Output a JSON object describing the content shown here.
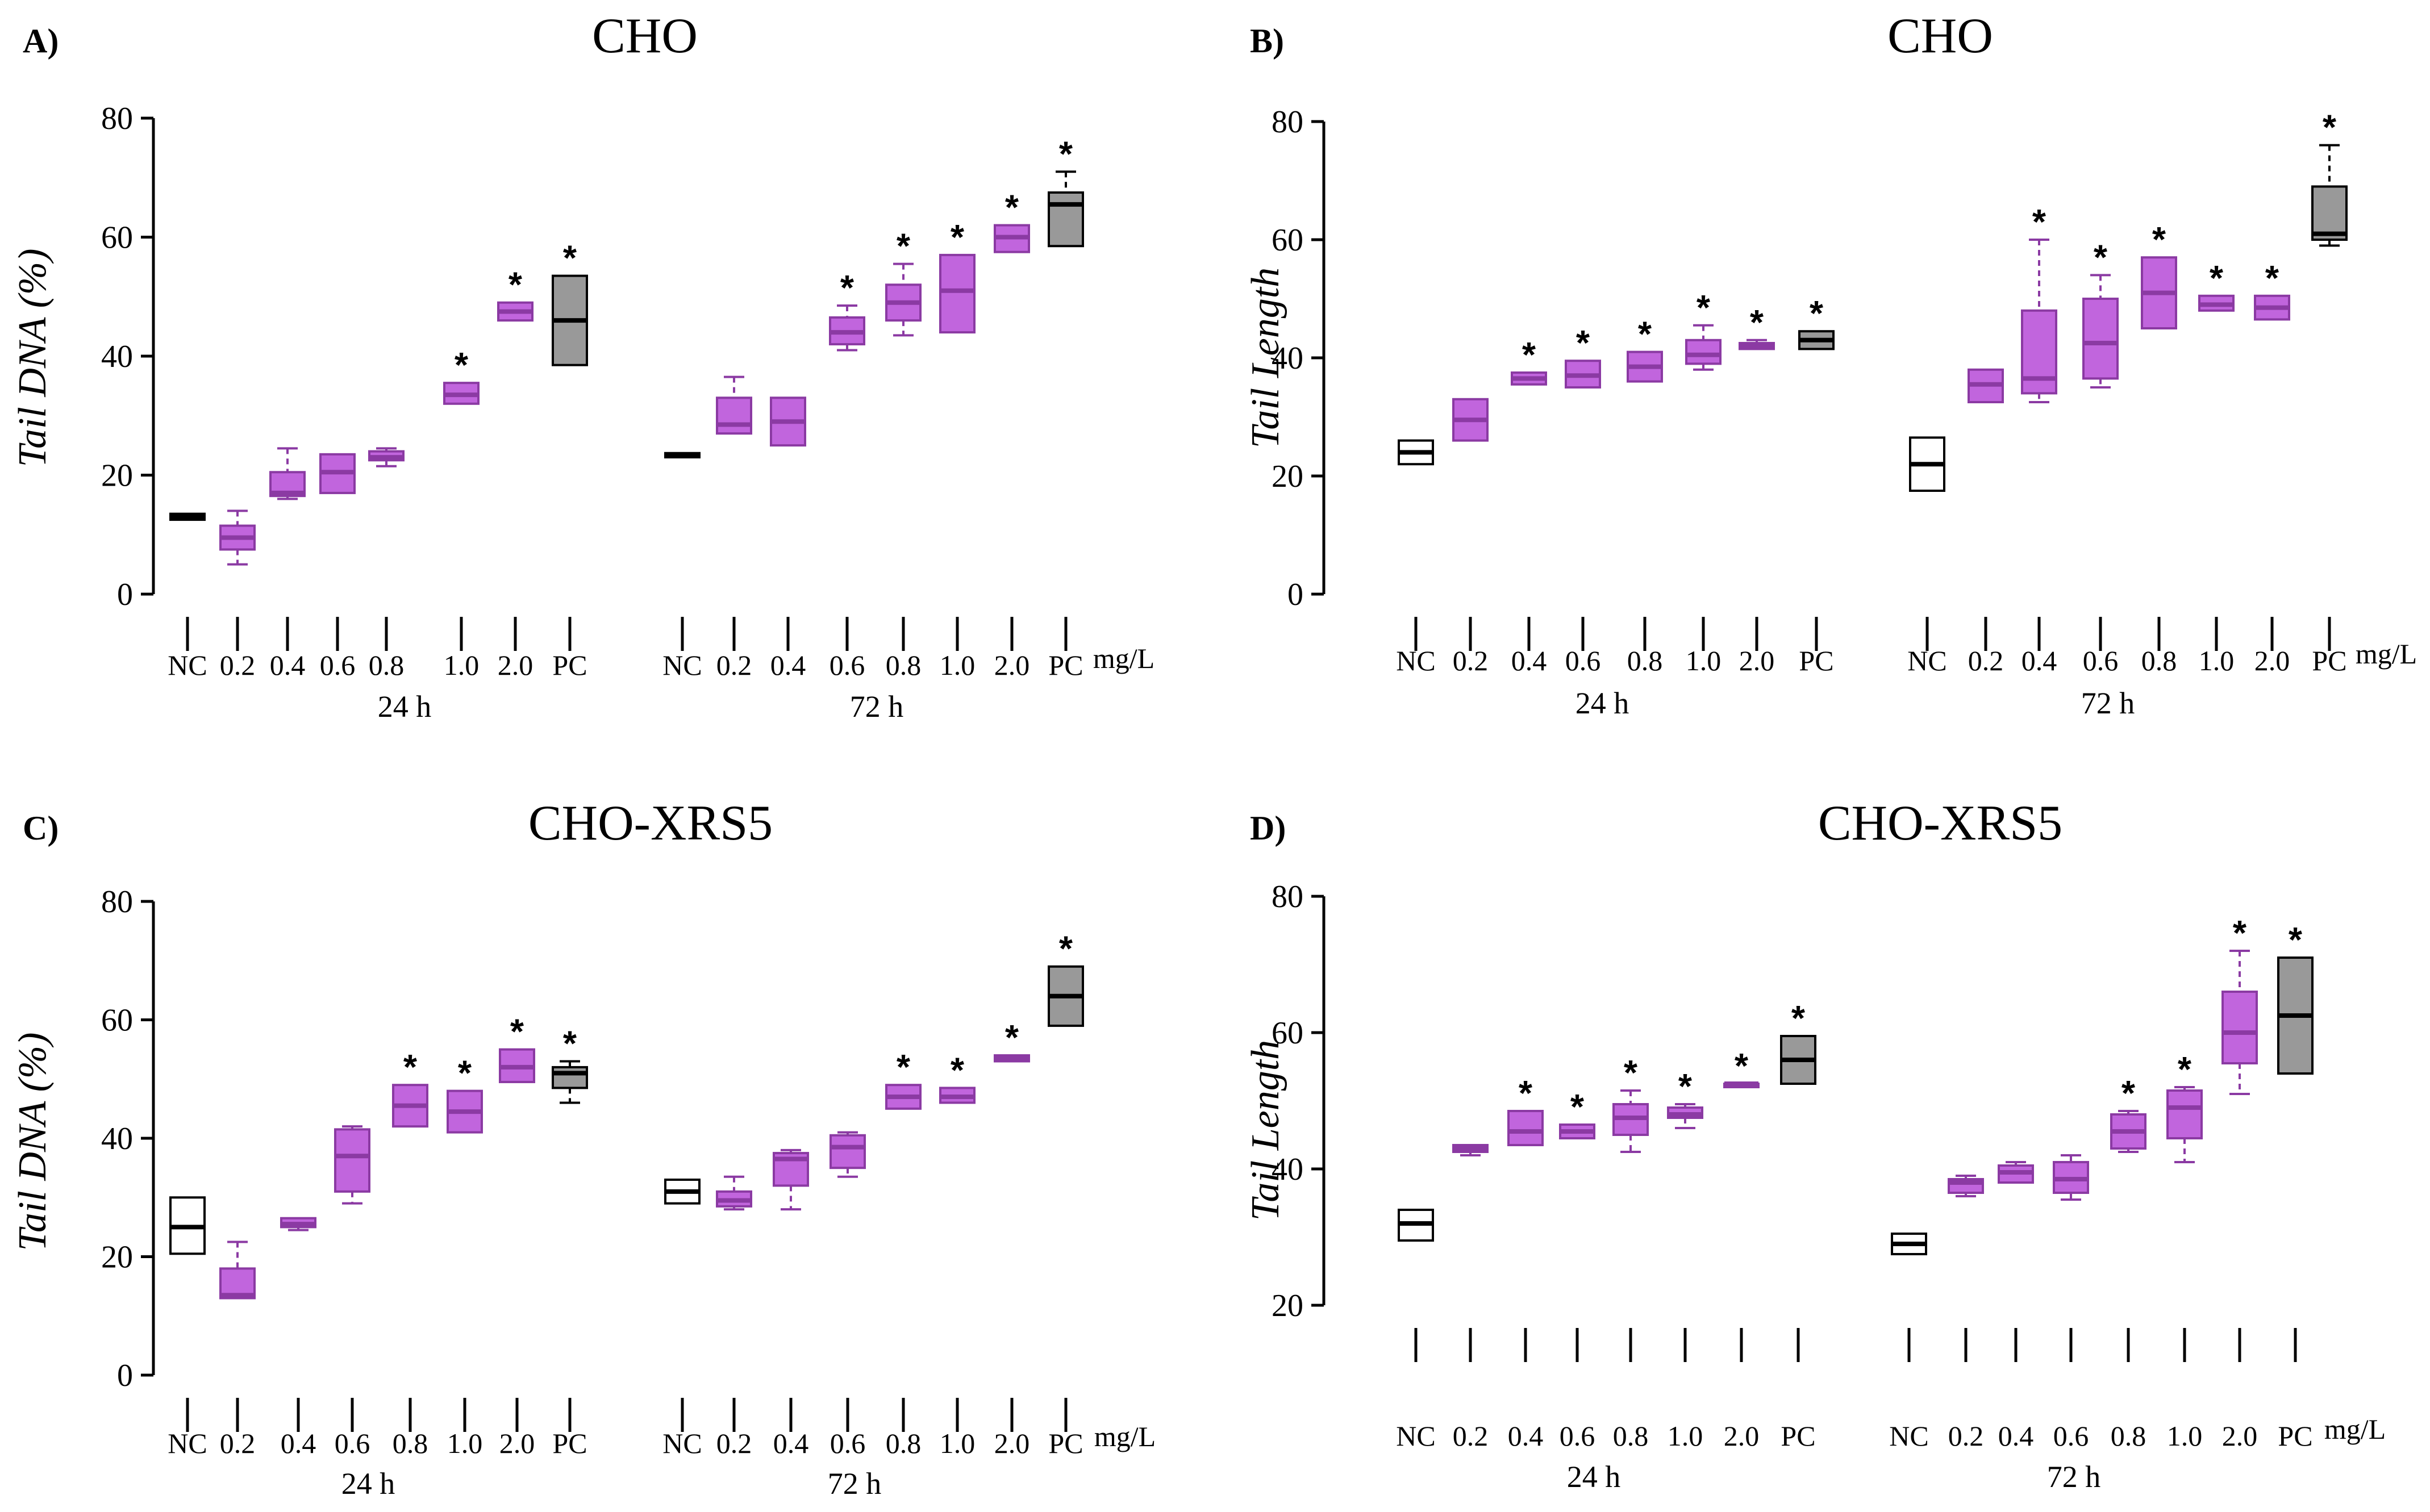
{
  "figure": {
    "categories": [
      "NC",
      "0.2",
      "0.4",
      "0.6",
      "0.8",
      "1.0",
      "2.0",
      "PC"
    ],
    "unit_label": "mg/L",
    "group_labels": [
      "24 h",
      "72 h"
    ],
    "colors": {
      "nc_fill": "#ffffff",
      "treatment_fill": "#c165dd",
      "treatment_dark": "#8b3aa3",
      "pc_fill": "#999999",
      "line": "#000000"
    }
  },
  "chart_data": [
    {
      "type": "boxplot",
      "panel": "A)",
      "title": "CHO",
      "ylabel": "Tail DNA (%)",
      "ylim": [
        0,
        80
      ],
      "yticks": [
        0,
        20,
        40,
        60,
        80
      ],
      "groups": [
        {
          "label": "24 h",
          "boxes": [
            {
              "category": "NC",
              "min": 12.5,
              "q1": 12.5,
              "median": 13,
              "q3": 13.5,
              "max": 13.5,
              "sig": false
            },
            {
              "category": "0.2",
              "min": 5,
              "q1": 7.5,
              "median": 9.5,
              "q3": 11.5,
              "max": 14,
              "sig": false
            },
            {
              "category": "0.4",
              "min": 16,
              "q1": 16.5,
              "median": 17,
              "q3": 20.5,
              "max": 24.5,
              "sig": false
            },
            {
              "category": "0.6",
              "min": 17,
              "q1": 17,
              "median": 20.5,
              "q3": 23.5,
              "max": 23.5,
              "sig": false
            },
            {
              "category": "0.8",
              "min": 21.5,
              "q1": 22.5,
              "median": 23,
              "q3": 24,
              "max": 24.5,
              "sig": false
            },
            {
              "category": "1.0",
              "min": 32,
              "q1": 32,
              "median": 33.5,
              "q3": 35.5,
              "max": 35.5,
              "sig": true
            },
            {
              "category": "2.0",
              "min": 46,
              "q1": 46,
              "median": 47.5,
              "q3": 49,
              "max": 49,
              "sig": true
            },
            {
              "category": "PC",
              "min": 38.5,
              "q1": 38.5,
              "median": 46,
              "q3": 53.5,
              "max": 53.5,
              "sig": true
            }
          ]
        },
        {
          "label": "72 h",
          "boxes": [
            {
              "category": "NC",
              "min": 23,
              "q1": 23,
              "median": 23.3,
              "q3": 23.7,
              "max": 23.7,
              "sig": false
            },
            {
              "category": "0.2",
              "min": 27,
              "q1": 27,
              "median": 28.5,
              "q3": 33,
              "max": 36.5,
              "sig": false
            },
            {
              "category": "0.4",
              "min": 25,
              "q1": 25,
              "median": 29,
              "q3": 33,
              "max": 33,
              "sig": false
            },
            {
              "category": "0.6",
              "min": 41,
              "q1": 42,
              "median": 44,
              "q3": 46.5,
              "max": 48.5,
              "sig": true
            },
            {
              "category": "0.8",
              "min": 43.5,
              "q1": 46,
              "median": 49,
              "q3": 52,
              "max": 55.5,
              "sig": true
            },
            {
              "category": "1.0",
              "min": 44,
              "q1": 44,
              "median": 51,
              "q3": 57,
              "max": 57,
              "sig": true
            },
            {
              "category": "2.0",
              "min": 57.5,
              "q1": 57.5,
              "median": 60,
              "q3": 62,
              "max": 62,
              "sig": true
            },
            {
              "category": "PC",
              "min": 58.5,
              "q1": 58.5,
              "median": 65.5,
              "q3": 67.5,
              "max": 71,
              "sig": true
            }
          ]
        }
      ]
    },
    {
      "type": "boxplot",
      "panel": "B)",
      "title": "CHO",
      "ylabel": "Tail Length",
      "ylim": [
        0,
        80
      ],
      "yticks": [
        0,
        20,
        40,
        60,
        80
      ],
      "groups": [
        {
          "label": "24 h",
          "boxes": [
            {
              "category": "NC",
              "min": 22,
              "q1": 22,
              "median": 24,
              "q3": 26,
              "max": 26,
              "sig": false
            },
            {
              "category": "0.2",
              "min": 26,
              "q1": 26,
              "median": 29.5,
              "q3": 33,
              "max": 33,
              "sig": false
            },
            {
              "category": "0.4",
              "min": 35.5,
              "q1": 35.5,
              "median": 36.5,
              "q3": 37.5,
              "max": 37.5,
              "sig": true
            },
            {
              "category": "0.6",
              "min": 35,
              "q1": 35,
              "median": 37,
              "q3": 39.5,
              "max": 39.5,
              "sig": true
            },
            {
              "category": "0.8",
              "min": 36,
              "q1": 36,
              "median": 38.5,
              "q3": 41,
              "max": 41,
              "sig": true
            },
            {
              "category": "1.0",
              "min": 38,
              "q1": 39,
              "median": 40.5,
              "q3": 43,
              "max": 45.5,
              "sig": true
            },
            {
              "category": "2.0",
              "min": 41.5,
              "q1": 41.5,
              "median": 42,
              "q3": 42.5,
              "max": 43,
              "sig": true
            },
            {
              "category": "PC",
              "min": 41.5,
              "q1": 41.5,
              "median": 43,
              "q3": 44.5,
              "max": 44.5,
              "sig": true
            }
          ]
        },
        {
          "label": "72 h",
          "boxes": [
            {
              "category": "NC",
              "min": 17.5,
              "q1": 17.5,
              "median": 22,
              "q3": 26.5,
              "max": 26.5,
              "sig": false
            },
            {
              "category": "0.2",
              "min": 32.5,
              "q1": 32.5,
              "median": 35.5,
              "q3": 38,
              "max": 38,
              "sig": false
            },
            {
              "category": "0.4",
              "min": 32.5,
              "q1": 34,
              "median": 36.5,
              "q3": 48,
              "max": 60,
              "sig": true
            },
            {
              "category": "0.6",
              "min": 35,
              "q1": 36.5,
              "median": 42.5,
              "q3": 50,
              "max": 54,
              "sig": true
            },
            {
              "category": "0.8",
              "min": 45,
              "q1": 45,
              "median": 51,
              "q3": 57,
              "max": 57,
              "sig": true
            },
            {
              "category": "1.0",
              "min": 48,
              "q1": 48,
              "median": 49,
              "q3": 50.5,
              "max": 50.5,
              "sig": true
            },
            {
              "category": "2.0",
              "min": 46.5,
              "q1": 46.5,
              "median": 48.5,
              "q3": 50.5,
              "max": 50.5,
              "sig": true
            },
            {
              "category": "PC",
              "min": 59,
              "q1": 60,
              "median": 61,
              "q3": 69,
              "max": 76,
              "sig": true
            }
          ]
        }
      ]
    },
    {
      "type": "boxplot",
      "panel": "C)",
      "title": "CHO-XRS5",
      "ylabel": "Tail DNA (%)",
      "ylim": [
        0,
        80
      ],
      "yticks": [
        0,
        20,
        40,
        60,
        80
      ],
      "groups": [
        {
          "label": "24 h",
          "boxes": [
            {
              "category": "NC",
              "min": 20.5,
              "q1": 20.5,
              "median": 25,
              "q3": 30,
              "max": 30,
              "sig": false
            },
            {
              "category": "0.2",
              "min": 13,
              "q1": 13,
              "median": 13.5,
              "q3": 18,
              "max": 22.5,
              "sig": false
            },
            {
              "category": "0.4",
              "min": 24.5,
              "q1": 25,
              "median": 25.5,
              "q3": 26.5,
              "max": 26.5,
              "sig": false
            },
            {
              "category": "0.6",
              "min": 29,
              "q1": 31,
              "median": 37,
              "q3": 41.5,
              "max": 42,
              "sig": false
            },
            {
              "category": "0.8",
              "min": 42,
              "q1": 42,
              "median": 45.5,
              "q3": 49,
              "max": 49,
              "sig": true
            },
            {
              "category": "1.0",
              "min": 41,
              "q1": 41,
              "median": 44.5,
              "q3": 48,
              "max": 48,
              "sig": true
            },
            {
              "category": "2.0",
              "min": 49.5,
              "q1": 49.5,
              "median": 52,
              "q3": 55,
              "max": 55,
              "sig": true
            },
            {
              "category": "PC",
              "min": 46,
              "q1": 48.5,
              "median": 51,
              "q3": 52,
              "max": 53,
              "sig": true
            }
          ]
        },
        {
          "label": "72 h",
          "boxes": [
            {
              "category": "NC",
              "min": 29,
              "q1": 29,
              "median": 31,
              "q3": 33,
              "max": 33,
              "sig": false
            },
            {
              "category": "0.2",
              "min": 28,
              "q1": 28.5,
              "median": 29.5,
              "q3": 31,
              "max": 33.5,
              "sig": false
            },
            {
              "category": "0.4",
              "min": 28,
              "q1": 32,
              "median": 36.5,
              "q3": 37.5,
              "max": 38,
              "sig": false
            },
            {
              "category": "0.6",
              "min": 33.5,
              "q1": 35,
              "median": 38.5,
              "q3": 40.5,
              "max": 41,
              "sig": false
            },
            {
              "category": "0.8",
              "min": 45,
              "q1": 45,
              "median": 47,
              "q3": 49,
              "max": 49,
              "sig": true
            },
            {
              "category": "1.0",
              "min": 46,
              "q1": 46,
              "median": 47,
              "q3": 48.5,
              "max": 48.5,
              "sig": true
            },
            {
              "category": "2.0",
              "min": 53,
              "q1": 53,
              "median": 53.5,
              "q3": 54,
              "max": 54,
              "sig": true
            },
            {
              "category": "PC",
              "min": 59,
              "q1": 59,
              "median": 64,
              "q3": 69,
              "max": 69,
              "sig": true
            }
          ]
        }
      ]
    },
    {
      "type": "boxplot",
      "panel": "D)",
      "title": "CHO-XRS5",
      "ylabel": "Tail Length",
      "ylim": [
        20,
        80
      ],
      "yticks": [
        20,
        40,
        60,
        80
      ],
      "groups": [
        {
          "label": "24 h",
          "boxes": [
            {
              "category": "NC",
              "min": 29.5,
              "q1": 29.5,
              "median": 32,
              "q3": 34,
              "max": 34,
              "sig": false
            },
            {
              "category": "0.2",
              "min": 42,
              "q1": 42.5,
              "median": 43,
              "q3": 43.5,
              "max": 43.5,
              "sig": false
            },
            {
              "category": "0.4",
              "min": 43.5,
              "q1": 43.5,
              "median": 45.5,
              "q3": 48.5,
              "max": 48.5,
              "sig": true
            },
            {
              "category": "0.6",
              "min": 44.5,
              "q1": 44.5,
              "median": 45.5,
              "q3": 46.5,
              "max": 46.5,
              "sig": true
            },
            {
              "category": "0.8",
              "min": 42.5,
              "q1": 45,
              "median": 47.5,
              "q3": 49.5,
              "max": 51.5,
              "sig": true
            },
            {
              "category": "1.0",
              "min": 46,
              "q1": 47.5,
              "median": 48,
              "q3": 49,
              "max": 49.5,
              "sig": true
            },
            {
              "category": "2.0",
              "min": 52,
              "q1": 52,
              "median": 52.5,
              "q3": 52.5,
              "max": 52.5,
              "sig": true
            },
            {
              "category": "PC",
              "min": 52.5,
              "q1": 52.5,
              "median": 56,
              "q3": 59.5,
              "max": 59.5,
              "sig": true
            }
          ]
        },
        {
          "label": "72 h",
          "boxes": [
            {
              "category": "NC",
              "min": 27.5,
              "q1": 27.5,
              "median": 29,
              "q3": 30.5,
              "max": 30.5,
              "sig": false
            },
            {
              "category": "0.2",
              "min": 36,
              "q1": 36.5,
              "median": 38,
              "q3": 38.5,
              "max": 39,
              "sig": false
            },
            {
              "category": "0.4",
              "min": 38,
              "q1": 38,
              "median": 39.5,
              "q3": 40.5,
              "max": 41,
              "sig": false
            },
            {
              "category": "0.6",
              "min": 35.5,
              "q1": 36.5,
              "median": 38.5,
              "q3": 41,
              "max": 42,
              "sig": false
            },
            {
              "category": "0.8",
              "min": 42.5,
              "q1": 43,
              "median": 45.5,
              "q3": 48,
              "max": 48.5,
              "sig": true
            },
            {
              "category": "1.0",
              "min": 41,
              "q1": 44.5,
              "median": 49,
              "q3": 51.5,
              "max": 52,
              "sig": true
            },
            {
              "category": "2.0",
              "min": 51,
              "q1": 55.5,
              "median": 60,
              "q3": 66,
              "max": 72,
              "sig": true
            },
            {
              "category": "PC",
              "min": 54,
              "q1": 54,
              "median": 62.5,
              "q3": 71,
              "max": 71,
              "sig": true
            }
          ]
        }
      ]
    }
  ]
}
